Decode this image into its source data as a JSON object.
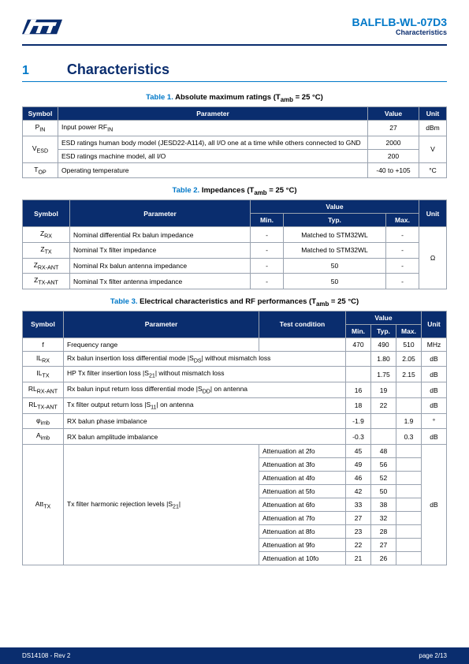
{
  "header": {
    "doc_code": "BALFLB-WL-07D3",
    "subtitle": "Characteristics"
  },
  "section": {
    "num": "1",
    "title": "Characteristics"
  },
  "table1": {
    "caption_ref": "Table 1.",
    "caption_text": "Absolute maximum ratings (T",
    "caption_sub": "amb",
    "caption_tail": " = 25 °C)",
    "headers": [
      "Symbol",
      "Parameter",
      "Value",
      "Unit"
    ],
    "rows": [
      {
        "sym": "P",
        "sub": "IN",
        "param": "Input power RF",
        "psub": "IN",
        "value": "27",
        "unit": "dBm",
        "rowspan": 1
      },
      {
        "sym": "V",
        "sub": "ESD",
        "param": "ESD ratings human body model (JESD22-A114), all I/O one at a time while others connected to GND",
        "value": "2000",
        "unit": "V",
        "rowspan": 2
      },
      {
        "param": "ESD ratings machine model, all I/O",
        "value": "200"
      },
      {
        "sym": "T",
        "sub": "OP",
        "param": "Operating temperature",
        "value": "-40 to +105",
        "unit": "°C",
        "rowspan": 1
      }
    ]
  },
  "table2": {
    "caption_ref": "Table 2.",
    "caption_text": "Impedances (T",
    "caption_sub": "amb",
    "caption_tail": " = 25 °C)",
    "headers": {
      "sym": "Symbol",
      "param": "Parameter",
      "value": "Value",
      "min": "Min.",
      "typ": "Typ.",
      "max": "Max.",
      "unit": "Unit"
    },
    "rows": [
      {
        "sym": "Z",
        "sub": "RX",
        "param": "Nominal differential Rx balun impedance",
        "min": "-",
        "typ": "Matched to STM32WL",
        "max": "-"
      },
      {
        "sym": "Z",
        "sub": "TX",
        "param": "Nominal Tx filter impedance",
        "min": "-",
        "typ": "Matched to STM32WL",
        "max": "-"
      },
      {
        "sym": "Z",
        "sub": "RX-ANT",
        "param": "Nominal Rx balun antenna impedance",
        "min": "-",
        "typ": "50",
        "max": "-"
      },
      {
        "sym": "Z",
        "sub": "TX-ANT",
        "param": "Nominal Tx filter antenna impedance",
        "min": "-",
        "typ": "50",
        "max": "-"
      }
    ],
    "unit": "Ω"
  },
  "table3": {
    "caption_ref": "Table 3.",
    "caption_text": "Electrical characteristics and RF performances (T",
    "caption_sub": "amb",
    "caption_tail": " = 25 °C)",
    "headers": {
      "sym": "Symbol",
      "param": "Parameter",
      "tc": "Test condition",
      "value": "Value",
      "min": "Min.",
      "typ": "Typ.",
      "max": "Max.",
      "unit": "Unit"
    },
    "rows": [
      {
        "sym": "f",
        "param": "Frequency range",
        "tc": "",
        "min": "470",
        "typ": "490",
        "max": "510",
        "unit": "MHz"
      },
      {
        "sym": "IL",
        "sub": "RX",
        "param": "Rx balun insertion loss differential mode |S",
        "psub": "DS",
        "ptail": "| without mismatch loss",
        "tc_merge": true,
        "min": "",
        "typ": "1.80",
        "max": "2.05",
        "unit": "dB"
      },
      {
        "sym": "IL",
        "sub": "TX",
        "param": "HP Tx filter insertion loss |S",
        "psub": "21",
        "ptail": "| without mismatch loss",
        "tc_merge": true,
        "min": "",
        "typ": "1.75",
        "max": "2.15",
        "unit": "dB"
      },
      {
        "sym": "RL",
        "sub": "RX-ANT",
        "param": "Rx balun input return loss differential mode |S",
        "psub": "DD",
        "ptail": "| on antenna",
        "tc_merge": true,
        "min": "16",
        "typ": "19",
        "max": "",
        "unit": "dB"
      },
      {
        "sym": "RL",
        "sub": "TX-ANT",
        "param": "Tx filter output return loss |S",
        "psub": "11",
        "ptail": "| on antenna",
        "tc_merge": true,
        "min": "18",
        "typ": "22",
        "max": "",
        "unit": "dB"
      },
      {
        "sym": "φ",
        "sub": "imb",
        "param": "RX balun phase imbalance",
        "tc_merge": true,
        "min": "-1.9",
        "typ": "",
        "max": "1.9",
        "unit": "°"
      },
      {
        "sym": "A",
        "sub": "imb",
        "param": "RX balun amplitude imbalance",
        "tc_merge": true,
        "min": "-0.3",
        "typ": "",
        "max": "0.3",
        "unit": "dB"
      }
    ],
    "att": {
      "sym": "Att",
      "sub": "TX",
      "param": "Tx filter harmonic rejection levels |S",
      "psub": "21",
      "ptail": "|",
      "unit": "dB",
      "conds": [
        {
          "tc": "Attenuation at 2fo",
          "min": "45",
          "typ": "48"
        },
        {
          "tc": "Attenuation at 3fo",
          "min": "49",
          "typ": "56"
        },
        {
          "tc": "Attenuation at 4fo",
          "min": "46",
          "typ": "52"
        },
        {
          "tc": "Attenuation at 5fo",
          "min": "42",
          "typ": "50"
        },
        {
          "tc": "Attenuation at 6fo",
          "min": "33",
          "typ": "38"
        },
        {
          "tc": "Attenuation at 7fo",
          "min": "27",
          "typ": "32"
        },
        {
          "tc": "Attenuation at 8fo",
          "min": "23",
          "typ": "28"
        },
        {
          "tc": "Attenuation at 9fo",
          "min": "22",
          "typ": "27"
        },
        {
          "tc": "Attenuation at 10fo",
          "min": "21",
          "typ": "26"
        }
      ]
    }
  },
  "footer": {
    "left": "DS14108 - Rev 2",
    "right": "page 2/13"
  },
  "colors": {
    "navy": "#0a2d6e",
    "blue": "#0078c8",
    "border": "#9aa3b0"
  }
}
